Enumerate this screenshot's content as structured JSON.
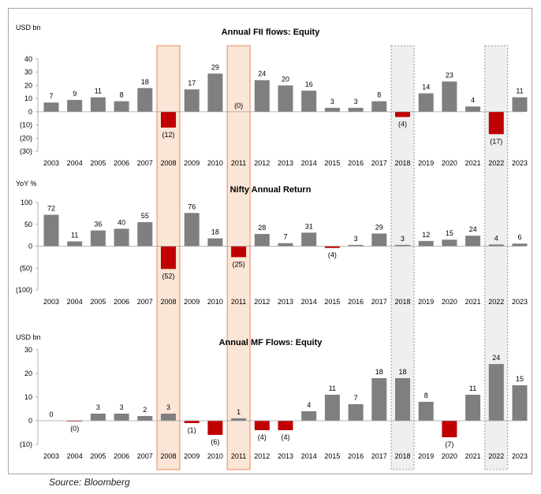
{
  "colors": {
    "positive": "#7f7f7f",
    "negative": "#c00000",
    "highlight_fill": "#fbe5d6",
    "highlight_border": "#e07040",
    "grey_fill": "#efefef",
    "grey_border": "#808080"
  },
  "years": [
    "2003",
    "2004",
    "2005",
    "2006",
    "2007",
    "2008",
    "2009",
    "2010",
    "2011",
    "2012",
    "2013",
    "2014",
    "2015",
    "2016",
    "2017",
    "2018",
    "2019",
    "2020",
    "2021",
    "2022",
    "2023"
  ],
  "highlight_years": {
    "orange": [
      "2008",
      "2011"
    ],
    "grey": [
      "2018",
      "2022"
    ]
  },
  "source": "Source: Bloomberg",
  "chart_data": [
    {
      "type": "bar",
      "title": "Annual FII flows: Equity",
      "ylabel": "USD bn",
      "ylim": [
        -30,
        40
      ],
      "yticks": [
        -30,
        -20,
        -10,
        0,
        10,
        20,
        30,
        40
      ],
      "ytick_labels": [
        "(30)",
        "(20)",
        "(10)",
        "0",
        "10",
        "20",
        "30",
        "40"
      ],
      "categories": [
        "2003",
        "2004",
        "2005",
        "2006",
        "2007",
        "2008",
        "2009",
        "2010",
        "2011",
        "2012",
        "2013",
        "2014",
        "2015",
        "2016",
        "2017",
        "2018",
        "2019",
        "2020",
        "2021",
        "2022",
        "2023"
      ],
      "values": [
        7,
        9,
        11,
        8,
        18,
        -12,
        17,
        29,
        0,
        24,
        20,
        16,
        3,
        3,
        8,
        -4,
        14,
        23,
        4,
        -17,
        11
      ],
      "data_labels": [
        "7",
        "9",
        "11",
        "8",
        "18",
        "(12)",
        "17",
        "29",
        "(0)",
        "24",
        "20",
        "16",
        "3",
        "3",
        "8",
        "(4)",
        "14",
        "23",
        "4",
        "(17)",
        "11"
      ]
    },
    {
      "type": "bar",
      "title": "Nifty Annual Return",
      "ylabel": "YoY %",
      "ylim": [
        -100,
        100
      ],
      "yticks": [
        -100,
        -50,
        0,
        50,
        100
      ],
      "ytick_labels": [
        "(100)",
        "(50)",
        "0",
        "50",
        "100"
      ],
      "categories": [
        "2003",
        "2004",
        "2005",
        "2006",
        "2007",
        "2008",
        "2009",
        "2010",
        "2011",
        "2012",
        "2013",
        "2014",
        "2015",
        "2016",
        "2017",
        "2018",
        "2019",
        "2020",
        "2021",
        "2022",
        "2023"
      ],
      "values": [
        72,
        11,
        36,
        40,
        55,
        -52,
        76,
        18,
        -25,
        28,
        7,
        31,
        -4,
        3,
        29,
        3,
        12,
        15,
        24,
        4,
        6
      ],
      "data_labels": [
        "72",
        "11",
        "36",
        "40",
        "55",
        "(52)",
        "76",
        "18",
        "(25)",
        "28",
        "7",
        "31",
        "(4)",
        "3",
        "29",
        "3",
        "12",
        "15",
        "24",
        "4",
        "6"
      ]
    },
    {
      "type": "bar",
      "title": "Annual MF Flows: Equity",
      "ylabel": "USD bn",
      "ylim": [
        -10,
        30
      ],
      "yticks": [
        -10,
        0,
        10,
        20,
        30
      ],
      "ytick_labels": [
        "(10)",
        "0",
        "10",
        "20",
        "30"
      ],
      "categories": [
        "2003",
        "2004",
        "2005",
        "2006",
        "2007",
        "2008",
        "2009",
        "2010",
        "2011",
        "2012",
        "2013",
        "2014",
        "2015",
        "2016",
        "2017",
        "2018",
        "2019",
        "2020",
        "2021",
        "2022",
        "2023"
      ],
      "values": [
        0,
        -0.3,
        3,
        3,
        2,
        3,
        -1,
        -6,
        1,
        -4,
        -4,
        4,
        11,
        7,
        18,
        18,
        8,
        -7,
        11,
        24,
        15
      ],
      "data_labels": [
        "0",
        "(0)",
        "3",
        "3",
        "2",
        "3",
        "(1)",
        "(6)",
        "1",
        "(4)",
        "(4)",
        "4",
        "11",
        "7",
        "18",
        "18",
        "8",
        "(7)",
        "11",
        "24",
        "15"
      ]
    }
  ]
}
